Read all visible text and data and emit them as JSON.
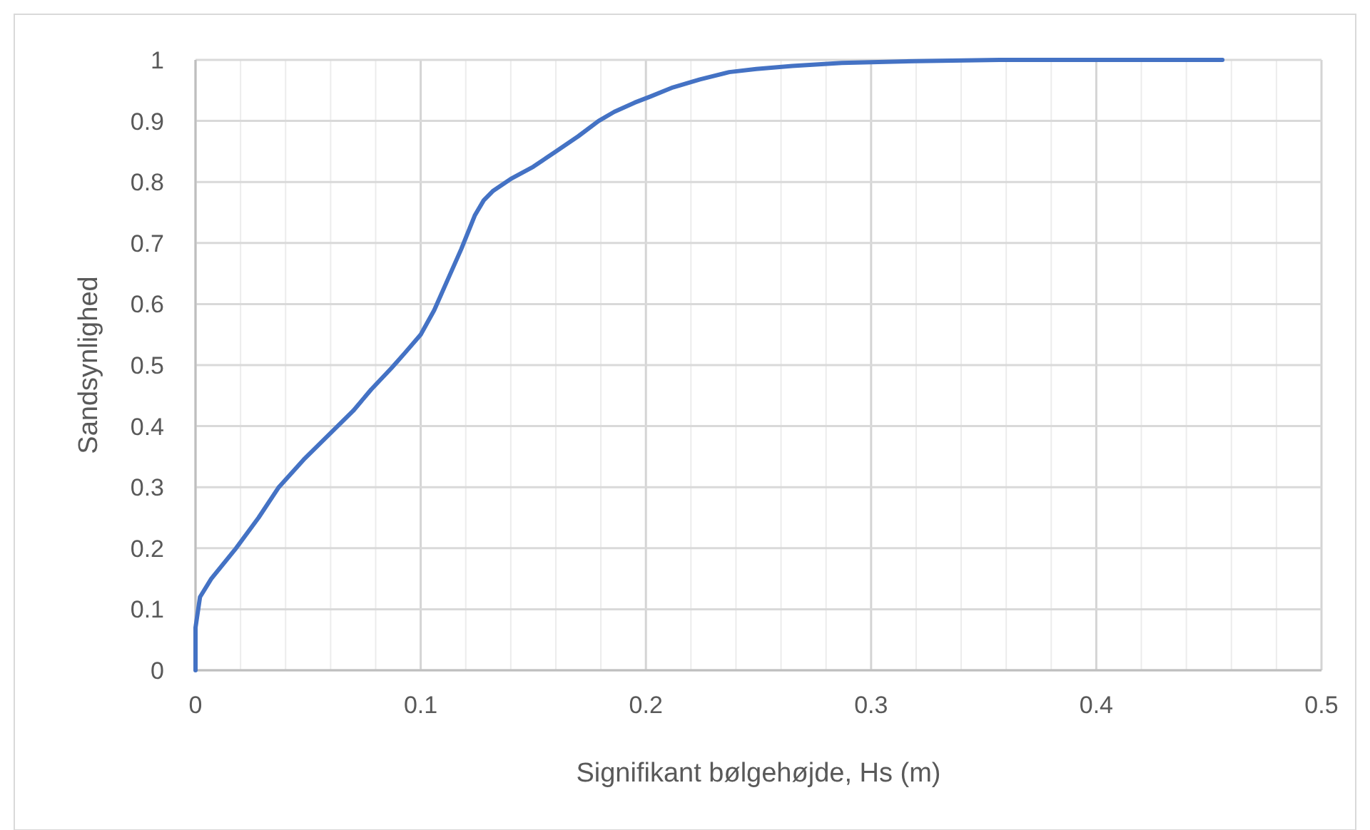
{
  "chart_data": {
    "type": "line",
    "xlabel": "Signifikant bølgehøjde, Hs (m)",
    "ylabel": "Sandsynlighed",
    "xlim": [
      0,
      0.5
    ],
    "ylim": [
      0,
      1
    ],
    "xticks": [
      0,
      {
        "value": 0.02,
        "label": null
      },
      {
        "value": 0.04,
        "label": null
      },
      {
        "value": 0.06,
        "label": null
      },
      {
        "value": 0.08,
        "label": null
      },
      0.1,
      {
        "value": 0.12,
        "label": null
      },
      {
        "value": 0.14,
        "label": null
      },
      {
        "value": 0.16,
        "label": null
      },
      {
        "value": 0.18,
        "label": null
      },
      0.2,
      {
        "value": 0.22,
        "label": null
      },
      {
        "value": 0.24,
        "label": null
      },
      {
        "value": 0.26,
        "label": null
      },
      {
        "value": 0.28,
        "label": null
      },
      0.3,
      {
        "value": 0.32,
        "label": null
      },
      {
        "value": 0.34,
        "label": null
      },
      {
        "value": 0.36,
        "label": null
      },
      {
        "value": 0.38,
        "label": null
      },
      0.4,
      {
        "value": 0.42,
        "label": null
      },
      {
        "value": 0.44,
        "label": null
      },
      {
        "value": 0.46,
        "label": null
      },
      {
        "value": 0.48,
        "label": null
      },
      0.5
    ],
    "yticks": [
      0,
      0.1,
      0.2,
      0.3,
      0.4,
      0.5,
      0.6,
      0.7,
      0.8,
      0.9,
      1
    ],
    "grid": true,
    "marker": "none",
    "line_style": "solid",
    "series": [
      {
        "color": "#4472c4",
        "x": [
          0,
          0,
          0.001,
          0.002,
          0.007,
          0.018,
          0.028,
          0.037,
          0.048,
          0.059,
          0.07,
          0.078,
          0.087,
          0.093,
          0.1,
          0.106,
          0.112,
          0.118,
          0.124,
          0.128,
          0.132,
          0.14,
          0.15,
          0.16,
          0.17,
          0.179,
          0.186,
          0.195,
          0.202,
          0.212,
          0.224,
          0.237,
          0.249,
          0.265,
          0.287,
          0.32,
          0.357,
          0.4,
          0.456
        ],
        "values": [
          0,
          0.07,
          0.095,
          0.12,
          0.15,
          0.2,
          0.25,
          0.3,
          0.345,
          0.385,
          0.425,
          0.46,
          0.495,
          0.52,
          0.55,
          0.59,
          0.64,
          0.69,
          0.745,
          0.77,
          0.785,
          0.805,
          0.825,
          0.85,
          0.875,
          0.9,
          0.915,
          0.93,
          0.94,
          0.955,
          0.968,
          0.98,
          0.985,
          0.99,
          0.995,
          0.998,
          1,
          1,
          1
        ]
      }
    ]
  }
}
